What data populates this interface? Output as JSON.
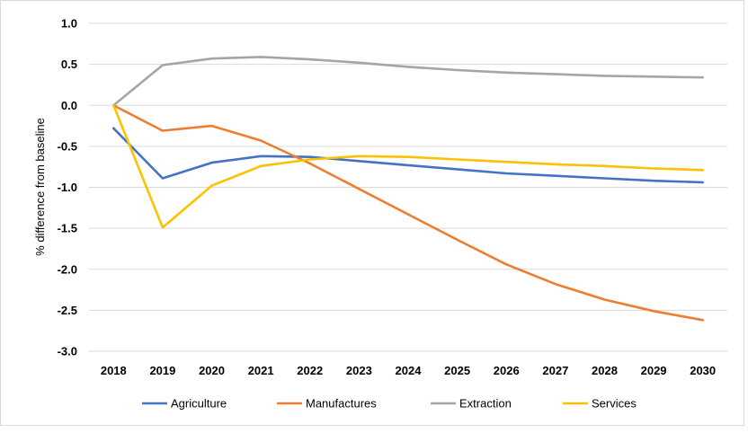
{
  "chart_data": {
    "type": "line",
    "title": "",
    "xlabel": "",
    "ylabel": "% difference from baseline",
    "ylim": [
      -3.0,
      1.0
    ],
    "y_ticks": [
      "1.0",
      "0.5",
      "0.0",
      "-0.5",
      "-1.0",
      "-1.5",
      "-2.0",
      "-2.5",
      "-3.0"
    ],
    "y_tick_values": [
      1.0,
      0.5,
      0.0,
      -0.5,
      -1.0,
      -1.5,
      -2.0,
      -2.5,
      -3.0
    ],
    "grid": true,
    "legend_position": "bottom",
    "categories": [
      "2018",
      "2019",
      "2020",
      "2021",
      "2022",
      "2023",
      "2024",
      "2025",
      "2026",
      "2027",
      "2028",
      "2029",
      "2030"
    ],
    "series": [
      {
        "name": "Agriculture",
        "color": "#4472C4",
        "values": [
          -0.28,
          -0.89,
          -0.7,
          -0.62,
          -0.63,
          -0.68,
          -0.73,
          -0.78,
          -0.83,
          -0.86,
          -0.89,
          -0.92,
          -0.94
        ]
      },
      {
        "name": "Manufactures",
        "color": "#ED7D31",
        "values": [
          0.0,
          -0.31,
          -0.25,
          -0.43,
          -0.71,
          -1.02,
          -1.33,
          -1.64,
          -1.94,
          -2.18,
          -2.37,
          -2.51,
          -2.62
        ]
      },
      {
        "name": "Extraction",
        "color": "#A5A5A5",
        "values": [
          0.0,
          0.49,
          0.57,
          0.59,
          0.56,
          0.52,
          0.47,
          0.43,
          0.4,
          0.38,
          0.36,
          0.35,
          0.34
        ]
      },
      {
        "name": "Services",
        "color": "#FFC000",
        "values": [
          0.0,
          -1.49,
          -0.98,
          -0.74,
          -0.66,
          -0.62,
          -0.63,
          -0.66,
          -0.69,
          -0.72,
          -0.74,
          -0.77,
          -0.79
        ]
      }
    ]
  }
}
